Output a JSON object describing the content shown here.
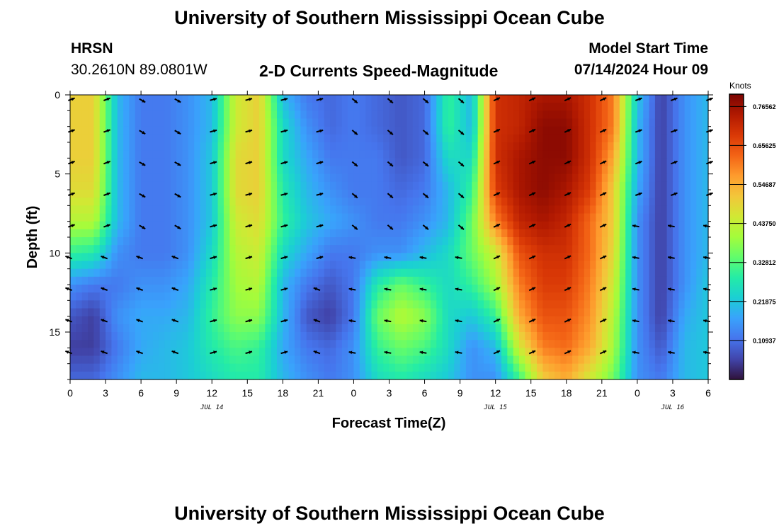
{
  "header": {
    "title": "University of Southern Mississippi Ocean Cube",
    "station": "HRSN",
    "coords": "30.2610N  89.0801W",
    "chart_title": "2-D Currents Speed-Magnitude",
    "model_label": "Model Start Time",
    "model_time": "07/14/2024 Hour 09"
  },
  "footer": {
    "title": "University of Southern Mississippi Ocean Cube"
  },
  "chart_data": {
    "type": "heatmap",
    "title": "2-D Currents Speed-Magnitude",
    "xlabel": "Forecast Time(Z)",
    "ylabel": "Depth (ft)",
    "x_tick_labels": [
      "0",
      "3",
      "6",
      "9",
      "12",
      "15",
      "18",
      "21",
      "0",
      "3",
      "6",
      "9",
      "12",
      "15",
      "18",
      "21",
      "0",
      "3",
      "6"
    ],
    "x_range_hours": [
      0,
      54
    ],
    "date_labels": [
      {
        "label": "JUL 14",
        "hour": 12
      },
      {
        "label": "JUL 15",
        "hour": 36
      },
      {
        "label": "JUL 16",
        "hour": 51
      }
    ],
    "y_ticks": [
      0,
      5,
      10,
      15
    ],
    "y_range_ft": [
      0,
      18
    ],
    "colorbar": {
      "unit": "Knots",
      "min": 0,
      "max": 0.8,
      "tick_labels": [
        "0.76562",
        "0.65625",
        "0.54687",
        "0.43750",
        "0.32812",
        "0.21875",
        "0.10937"
      ],
      "tick_values": [
        0.76562,
        0.65625,
        0.54687,
        0.4375,
        0.32812,
        0.21875,
        0.10937
      ]
    },
    "colors": {
      "scale": [
        "#30123b",
        "#4145ab",
        "#4675ed",
        "#39a2fc",
        "#1bcfd4",
        "#24eca6",
        "#61fc6c",
        "#a4fc3b",
        "#d1e834",
        "#f3c63a",
        "#fe9b2d",
        "#f36315",
        "#d93806",
        "#b11901",
        "#7a0402"
      ]
    },
    "grid": {
      "x_hours": [
        0,
        2,
        4,
        6,
        8,
        10,
        12,
        14,
        16,
        18,
        20,
        22,
        24,
        26,
        28,
        30,
        32,
        34,
        36,
        38,
        40,
        42,
        44,
        46,
        48,
        50,
        52,
        54
      ],
      "depths_ft": [
        0,
        2,
        4,
        6,
        8,
        10,
        12,
        14,
        16,
        18
      ],
      "speed_knots": [
        [
          0.5,
          0.5,
          0.2,
          0.12,
          0.12,
          0.15,
          0.2,
          0.45,
          0.5,
          0.2,
          0.12,
          0.1,
          0.12,
          0.1,
          0.08,
          0.1,
          0.3,
          0.2,
          0.7,
          0.72,
          0.75,
          0.75,
          0.7,
          0.6,
          0.22,
          0.05,
          0.15,
          0.2
        ],
        [
          0.5,
          0.5,
          0.2,
          0.12,
          0.12,
          0.15,
          0.2,
          0.45,
          0.5,
          0.25,
          0.15,
          0.1,
          0.12,
          0.1,
          0.08,
          0.1,
          0.3,
          0.2,
          0.7,
          0.72,
          0.78,
          0.78,
          0.7,
          0.6,
          0.2,
          0.05,
          0.15,
          0.2
        ],
        [
          0.5,
          0.5,
          0.2,
          0.12,
          0.12,
          0.15,
          0.22,
          0.48,
          0.5,
          0.25,
          0.18,
          0.12,
          0.12,
          0.12,
          0.08,
          0.1,
          0.25,
          0.25,
          0.7,
          0.75,
          0.78,
          0.78,
          0.7,
          0.55,
          0.2,
          0.05,
          0.15,
          0.2
        ],
        [
          0.48,
          0.48,
          0.2,
          0.12,
          0.12,
          0.15,
          0.22,
          0.48,
          0.5,
          0.28,
          0.2,
          0.15,
          0.12,
          0.12,
          0.1,
          0.12,
          0.2,
          0.3,
          0.68,
          0.75,
          0.78,
          0.75,
          0.68,
          0.5,
          0.18,
          0.05,
          0.15,
          0.2
        ],
        [
          0.42,
          0.42,
          0.2,
          0.12,
          0.12,
          0.15,
          0.22,
          0.45,
          0.48,
          0.3,
          0.22,
          0.18,
          0.15,
          0.12,
          0.12,
          0.15,
          0.2,
          0.35,
          0.6,
          0.72,
          0.75,
          0.72,
          0.62,
          0.5,
          0.15,
          0.05,
          0.15,
          0.2
        ],
        [
          0.3,
          0.28,
          0.15,
          0.12,
          0.12,
          0.15,
          0.25,
          0.42,
          0.45,
          0.25,
          0.18,
          0.12,
          0.12,
          0.15,
          0.15,
          0.2,
          0.25,
          0.35,
          0.45,
          0.65,
          0.7,
          0.7,
          0.62,
          0.48,
          0.15,
          0.05,
          0.15,
          0.2
        ],
        [
          0.15,
          0.12,
          0.12,
          0.15,
          0.15,
          0.18,
          0.28,
          0.4,
          0.42,
          0.2,
          0.12,
          0.08,
          0.12,
          0.28,
          0.35,
          0.3,
          0.25,
          0.3,
          0.4,
          0.6,
          0.68,
          0.68,
          0.6,
          0.45,
          0.15,
          0.05,
          0.15,
          0.22
        ],
        [
          0.08,
          0.05,
          0.15,
          0.18,
          0.18,
          0.2,
          0.3,
          0.38,
          0.38,
          0.2,
          0.08,
          0.05,
          0.12,
          0.35,
          0.42,
          0.38,
          0.25,
          0.22,
          0.3,
          0.55,
          0.65,
          0.65,
          0.58,
          0.42,
          0.15,
          0.05,
          0.18,
          0.22
        ],
        [
          0.05,
          0.05,
          0.12,
          0.18,
          0.2,
          0.22,
          0.28,
          0.32,
          0.3,
          0.18,
          0.12,
          0.1,
          0.15,
          0.3,
          0.35,
          0.32,
          0.25,
          0.15,
          0.2,
          0.45,
          0.6,
          0.62,
          0.55,
          0.4,
          0.15,
          0.08,
          0.2,
          0.22
        ],
        [
          0.1,
          0.1,
          0.15,
          0.2,
          0.2,
          0.22,
          0.25,
          0.28,
          0.28,
          0.2,
          0.15,
          0.12,
          0.15,
          0.25,
          0.28,
          0.25,
          0.22,
          0.15,
          0.15,
          0.3,
          0.5,
          0.55,
          0.45,
          0.35,
          0.15,
          0.12,
          0.2,
          0.22
        ]
      ]
    }
  }
}
